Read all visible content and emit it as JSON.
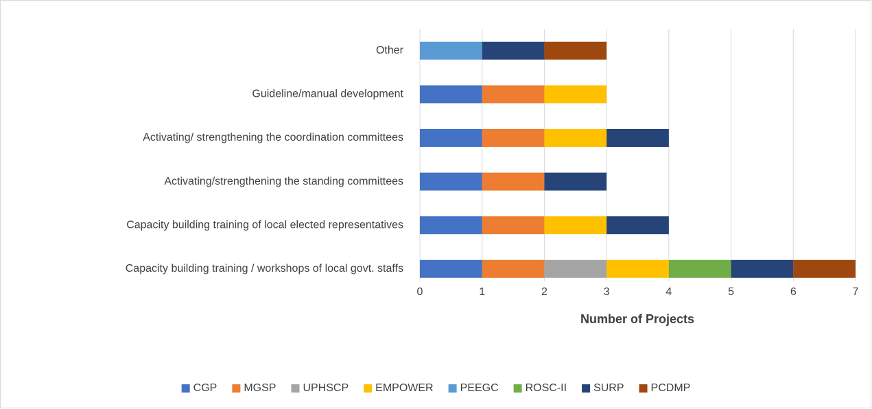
{
  "chart_data": {
    "type": "stacked-bar-horizontal",
    "x_label": "Number of Projects",
    "categories": [
      "Capacity building training / workshops of local govt. staffs",
      "Capacity building training of local elected representatives",
      "Activating/strengthening the standing committees",
      "Activating/ strengthening the coordination committees",
      "Guideline/manual development",
      "Other"
    ],
    "series": [
      {
        "name": "CGP",
        "color": "#4472c4",
        "values": [
          1,
          1,
          1,
          1,
          1,
          0
        ]
      },
      {
        "name": "MGSP",
        "color": "#ed7d31",
        "values": [
          1,
          1,
          1,
          1,
          1,
          0
        ]
      },
      {
        "name": "UPHSCP",
        "color": "#a5a5a5",
        "values": [
          1,
          0,
          0,
          0,
          0,
          0
        ]
      },
      {
        "name": "EMPOWER",
        "color": "#ffc000",
        "values": [
          1,
          1,
          0,
          1,
          1,
          0
        ]
      },
      {
        "name": "PEEGC",
        "color": "#5b9bd5",
        "values": [
          0,
          0,
          0,
          0,
          0,
          1
        ]
      },
      {
        "name": "ROSC-II",
        "color": "#70ad47",
        "values": [
          1,
          0,
          0,
          0,
          0,
          0
        ]
      },
      {
        "name": "SURP",
        "color": "#264478",
        "values": [
          1,
          1,
          1,
          1,
          0,
          1
        ]
      },
      {
        "name": "PCDMP",
        "color": "#9e480e",
        "values": [
          1,
          0,
          0,
          0,
          0,
          1
        ]
      }
    ],
    "xlim": [
      0,
      7
    ],
    "xticks": [
      0,
      1,
      2,
      3,
      4,
      5,
      6,
      7
    ],
    "grid": true,
    "legend": "bottom"
  }
}
